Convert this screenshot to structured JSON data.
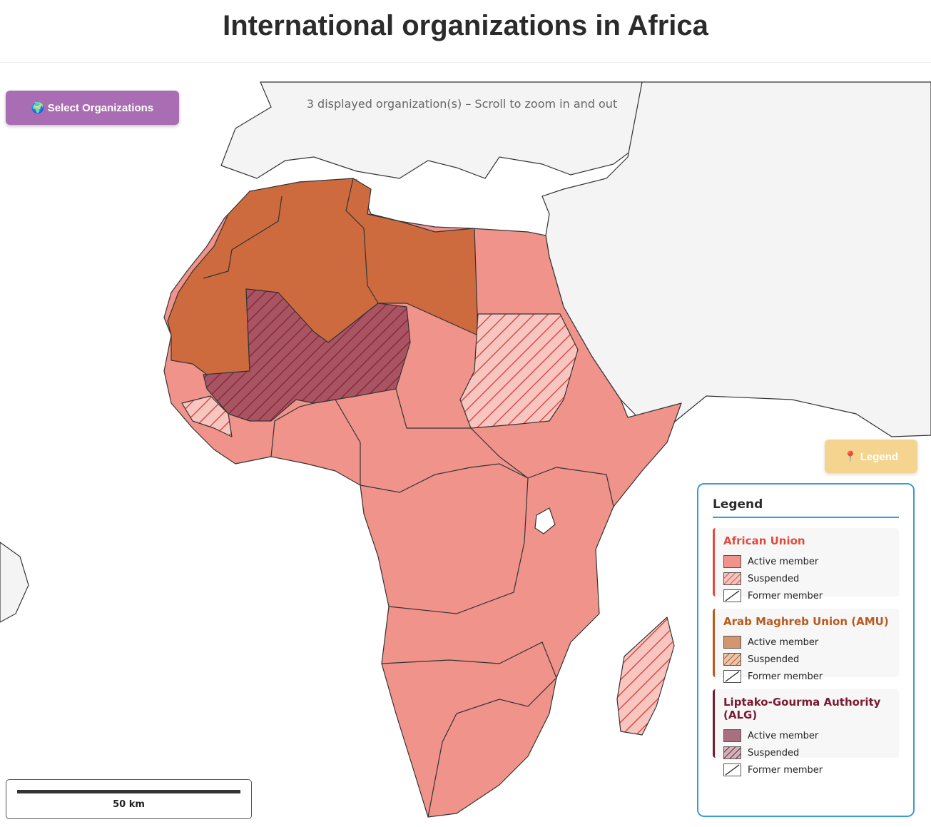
{
  "header": {
    "title": "International organizations in Africa"
  },
  "controls": {
    "select_button": "🌍 Select Organizations",
    "legend_button": "📍 Legend"
  },
  "map": {
    "info": "3 displayed organization(s) – Scroll to zoom in and out",
    "scale_label": "50 km"
  },
  "legend": {
    "title": "Legend",
    "groups": [
      {
        "name": "African Union",
        "text_color": "#e04b3f",
        "fill": "#f0938a",
        "items": [
          "Active member",
          "Suspended",
          "Former member"
        ]
      },
      {
        "name": "Arab Maghreb Union (AMU)",
        "text_color": "#b85a1e",
        "fill": "#d4966e",
        "items": [
          "Active member",
          "Suspended",
          "Former member"
        ]
      },
      {
        "name": "Liptako-Gourma Authority (ALG)",
        "text_color": "#7a1a32",
        "fill": "#a8707e",
        "items": [
          "Active member",
          "Suspended",
          "Former member"
        ]
      }
    ]
  }
}
